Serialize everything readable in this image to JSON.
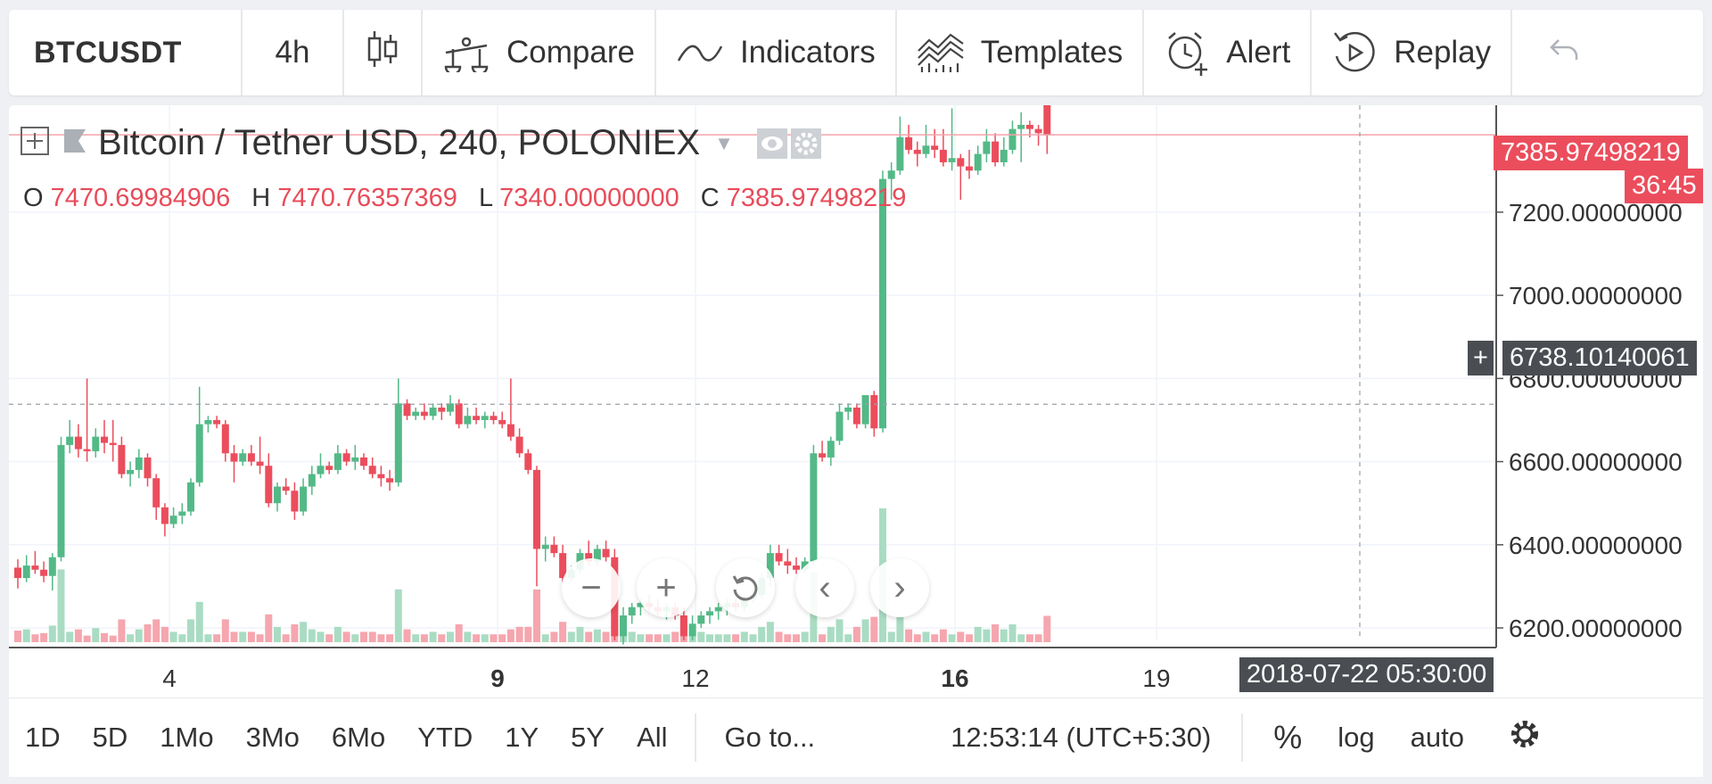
{
  "toolbar": {
    "symbol": "BTCUSDT",
    "interval": "4h",
    "compare": "Compare",
    "indicators": "Indicators",
    "templates": "Templates",
    "alert": "Alert",
    "replay": "Replay"
  },
  "legend": {
    "title": "Bitcoin / Tether USD, 240, POLONIEX",
    "o_label": "O",
    "o": "7470.69984906",
    "h_label": "H",
    "h": "7470.76357369",
    "l_label": "L",
    "l": "7340.00000000",
    "c_label": "C",
    "c": "7385.97498219"
  },
  "price_axis": {
    "ticks": [
      "7200.00000000",
      "7000.00000000",
      "6800.00000000",
      "6600.00000000",
      "6400.00000000",
      "6200.00000000"
    ],
    "last_price": "7385.97498219",
    "countdown": "36:45",
    "crosshair_price": "6738.10140061"
  },
  "time_axis": {
    "ticks": [
      "4",
      "9",
      "12",
      "16",
      "19"
    ],
    "crosshair_time": "2018-07-22 05:30:00"
  },
  "bottombar": {
    "ranges": [
      "1D",
      "5D",
      "1Mo",
      "3Mo",
      "6Mo",
      "YTD",
      "1Y",
      "5Y",
      "All"
    ],
    "goto": "Go to...",
    "clock": "12:53:14 (UTC+5:30)",
    "percent": "%",
    "log": "log",
    "auto": "auto"
  },
  "colors": {
    "up": "#53b987",
    "down": "#eb4d5c",
    "up_vol": "#a9dcc3",
    "down_vol": "#f5a6ae"
  },
  "icons": [
    "candles-icon",
    "compare-icon",
    "indicators-icon",
    "templates-icon",
    "alert-icon",
    "replay-icon",
    "undo-icon",
    "add-symbol-icon",
    "flag-icon",
    "eye-icon",
    "gear-icon",
    "zoom-out-icon",
    "zoom-in-icon",
    "reset-icon",
    "scroll-left-icon",
    "scroll-right-icon",
    "settings-icon"
  ],
  "chart_data": {
    "type": "candlestick",
    "symbol": "BTCUSDT",
    "ylim": [
      6170,
      7440
    ],
    "candles": [
      [
        6345,
        6365,
        6295,
        6320
      ],
      [
        6320,
        6375,
        6310,
        6350
      ],
      [
        6350,
        6385,
        6330,
        6340
      ],
      [
        6340,
        6360,
        6310,
        6325
      ],
      [
        6325,
        6380,
        6290,
        6370
      ],
      [
        6370,
        6660,
        6360,
        6640
      ],
      [
        6640,
        6700,
        6620,
        6660
      ],
      [
        6660,
        6690,
        6610,
        6630
      ],
      [
        6630,
        6800,
        6600,
        6625
      ],
      [
        6625,
        6680,
        6610,
        6660
      ],
      [
        6660,
        6700,
        6620,
        6645
      ],
      [
        6645,
        6700,
        6600,
        6640
      ],
      [
        6640,
        6660,
        6560,
        6570
      ],
      [
        6570,
        6600,
        6540,
        6580
      ],
      [
        6580,
        6630,
        6560,
        6610
      ],
      [
        6610,
        6620,
        6540,
        6560
      ],
      [
        6560,
        6570,
        6460,
        6490
      ],
      [
        6490,
        6500,
        6420,
        6450
      ],
      [
        6450,
        6490,
        6440,
        6470
      ],
      [
        6470,
        6500,
        6450,
        6480
      ],
      [
        6480,
        6560,
        6470,
        6550
      ],
      [
        6550,
        6780,
        6540,
        6690
      ],
      [
        6690,
        6710,
        6670,
        6700
      ],
      [
        6700,
        6710,
        6680,
        6690
      ],
      [
        6690,
        6700,
        6600,
        6620
      ],
      [
        6620,
        6640,
        6550,
        6600
      ],
      [
        6600,
        6630,
        6590,
        6620
      ],
      [
        6620,
        6640,
        6590,
        6600
      ],
      [
        6600,
        6660,
        6570,
        6590
      ],
      [
        6590,
        6620,
        6490,
        6500
      ],
      [
        6500,
        6550,
        6480,
        6540
      ],
      [
        6540,
        6560,
        6520,
        6530
      ],
      [
        6530,
        6550,
        6460,
        6480
      ],
      [
        6480,
        6560,
        6470,
        6540
      ],
      [
        6540,
        6590,
        6520,
        6570
      ],
      [
        6570,
        6620,
        6560,
        6590
      ],
      [
        6590,
        6600,
        6570,
        6580
      ],
      [
        6580,
        6640,
        6570,
        6620
      ],
      [
        6620,
        6630,
        6590,
        6600
      ],
      [
        6600,
        6640,
        6580,
        6610
      ],
      [
        6610,
        6620,
        6580,
        6590
      ],
      [
        6590,
        6610,
        6560,
        6570
      ],
      [
        6570,
        6590,
        6540,
        6560
      ],
      [
        6560,
        6580,
        6530,
        6550
      ],
      [
        6550,
        6800,
        6540,
        6740
      ],
      [
        6740,
        6750,
        6700,
        6710
      ],
      [
        6710,
        6730,
        6700,
        6720
      ],
      [
        6720,
        6740,
        6700,
        6710
      ],
      [
        6710,
        6740,
        6700,
        6730
      ],
      [
        6730,
        6740,
        6700,
        6720
      ],
      [
        6720,
        6760,
        6710,
        6740
      ],
      [
        6740,
        6750,
        6680,
        6690
      ],
      [
        6690,
        6730,
        6680,
        6710
      ],
      [
        6710,
        6730,
        6690,
        6700
      ],
      [
        6700,
        6720,
        6680,
        6710
      ],
      [
        6710,
        6720,
        6690,
        6700
      ],
      [
        6700,
        6720,
        6680,
        6690
      ],
      [
        6690,
        6800,
        6650,
        6660
      ],
      [
        6660,
        6680,
        6610,
        6620
      ],
      [
        6620,
        6630,
        6570,
        6580
      ],
      [
        6580,
        6590,
        6300,
        6390
      ],
      [
        6390,
        6420,
        6360,
        6400
      ],
      [
        6400,
        6420,
        6370,
        6380
      ],
      [
        6380,
        6400,
        6310,
        6320
      ],
      [
        6320,
        6350,
        6310,
        6340
      ],
      [
        6340,
        6390,
        6330,
        6380
      ],
      [
        6380,
        6410,
        6350,
        6360
      ],
      [
        6360,
        6400,
        6350,
        6390
      ],
      [
        6390,
        6410,
        6360,
        6370
      ],
      [
        6370,
        6390,
        6170,
        6180
      ],
      [
        6180,
        6250,
        6160,
        6230
      ],
      [
        6230,
        6260,
        6210,
        6250
      ],
      [
        6250,
        6270,
        6230,
        6260
      ],
      [
        6260,
        6280,
        6240,
        6250
      ],
      [
        6250,
        6270,
        6230,
        6240
      ],
      [
        6240,
        6260,
        6220,
        6250
      ],
      [
        6250,
        6260,
        6220,
        6230
      ],
      [
        6230,
        6250,
        6170,
        6180
      ],
      [
        6180,
        6230,
        6170,
        6210
      ],
      [
        6210,
        6240,
        6200,
        6230
      ],
      [
        6230,
        6250,
        6210,
        6240
      ],
      [
        6240,
        6260,
        6220,
        6250
      ],
      [
        6250,
        6270,
        6230,
        6260
      ],
      [
        6260,
        6270,
        6240,
        6250
      ],
      [
        6250,
        6280,
        6240,
        6270
      ],
      [
        6270,
        6290,
        6260,
        6280
      ],
      [
        6280,
        6330,
        6270,
        6320
      ],
      [
        6320,
        6400,
        6300,
        6380
      ],
      [
        6380,
        6400,
        6350,
        6360
      ],
      [
        6360,
        6390,
        6330,
        6350
      ],
      [
        6350,
        6370,
        6330,
        6340
      ],
      [
        6340,
        6370,
        6330,
        6360
      ],
      [
        6360,
        6640,
        6350,
        6620
      ],
      [
        6620,
        6650,
        6600,
        6610
      ],
      [
        6610,
        6660,
        6590,
        6650
      ],
      [
        6650,
        6740,
        6640,
        6720
      ],
      [
        6720,
        6740,
        6700,
        6730
      ],
      [
        6730,
        6740,
        6680,
        6690
      ],
      [
        6690,
        6760,
        6680,
        6760
      ],
      [
        6760,
        6770,
        6660,
        6680
      ],
      [
        6680,
        7300,
        6670,
        7280
      ],
      [
        7280,
        7320,
        7230,
        7300
      ],
      [
        7300,
        7430,
        7290,
        7380
      ],
      [
        7380,
        7410,
        7340,
        7350
      ],
      [
        7350,
        7370,
        7310,
        7340
      ],
      [
        7340,
        7410,
        7330,
        7360
      ],
      [
        7360,
        7400,
        7330,
        7350
      ],
      [
        7350,
        7400,
        7310,
        7320
      ],
      [
        7320,
        7450,
        7300,
        7330
      ],
      [
        7330,
        7340,
        7230,
        7310
      ],
      [
        7310,
        7350,
        7280,
        7300
      ],
      [
        7300,
        7360,
        7290,
        7340
      ],
      [
        7340,
        7400,
        7320,
        7370
      ],
      [
        7370,
        7390,
        7310,
        7320
      ],
      [
        7320,
        7380,
        7310,
        7350
      ],
      [
        7350,
        7420,
        7340,
        7400
      ],
      [
        7400,
        7440,
        7320,
        7410
      ],
      [
        7410,
        7420,
        7380,
        7400
      ],
      [
        7400,
        7410,
        7360,
        7390
      ],
      [
        7470,
        7470,
        7340,
        7386
      ]
    ]
  }
}
